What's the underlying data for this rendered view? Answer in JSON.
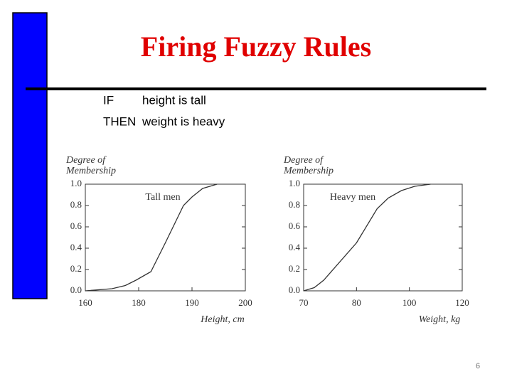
{
  "title": "Firing Fuzzy Rules",
  "rule": [
    {
      "keyword": "IF",
      "text": "height is tall"
    },
    {
      "keyword": "THEN",
      "text": "weight is heavy"
    }
  ],
  "page_number": "6",
  "chart_data": [
    {
      "type": "line",
      "ylabel": [
        "Degree of",
        "Membership"
      ],
      "xlabel": "Height, cm",
      "annotation": "Tall men",
      "x": [
        160,
        170,
        175,
        179,
        182.3,
        185,
        188.4,
        190,
        192,
        194.7
      ],
      "values": [
        0,
        0.02,
        0.05,
        0.1,
        0.18,
        0.45,
        0.8,
        0.88,
        0.96,
        1.0
      ],
      "color": "#333333",
      "xlim": [
        160,
        200
      ],
      "xticks": [
        160,
        180,
        190,
        200
      ],
      "ylim": [
        0,
        1
      ],
      "yticks": [
        {
          "value": 0,
          "label": "0.0"
        },
        0.2,
        0.4,
        0.6,
        0.8,
        {
          "value": 1,
          "label": "1.0"
        }
      ]
    },
    {
      "type": "line",
      "ylabel": [
        "Degree of",
        "Membership"
      ],
      "xlabel": "Weight, kg",
      "annotation": "Heavy men",
      "x": [
        70,
        72,
        73.8,
        80,
        87.8,
        92,
        97,
        102,
        108
      ],
      "values": [
        0,
        0.03,
        0.1,
        0.45,
        0.77,
        0.87,
        0.94,
        0.98,
        1.0
      ],
      "color": "#333333",
      "xlim": [
        70,
        120
      ],
      "xticks": [
        70,
        80,
        100,
        120
      ],
      "ylim": [
        0,
        1
      ],
      "yticks": [
        {
          "value": 0,
          "label": "0.0"
        },
        0.2,
        0.4,
        0.6,
        0.8,
        {
          "value": 1,
          "label": "1.0"
        }
      ]
    }
  ]
}
